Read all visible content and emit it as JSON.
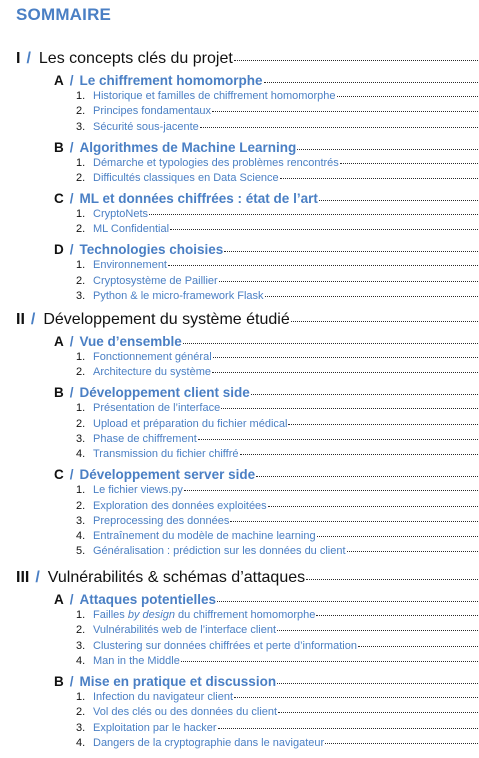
{
  "title": "SOMMAIRE",
  "sections": [
    {
      "num": "I",
      "slash": "/",
      "label": "Les concepts clés du projet",
      "subsections": [
        {
          "letter": "A",
          "slash": "/",
          "label": "Le chiffrement homomorphe",
          "items": [
            {
              "num": "1.",
              "label": "Historique et familles de chiffrement homomorphe"
            },
            {
              "num": "2.",
              "label": "Principes fondamentaux"
            },
            {
              "num": "3.",
              "label": "Sécurité sous-jacente"
            }
          ]
        },
        {
          "letter": "B",
          "slash": "/",
          "label": "Algorithmes de Machine Learning",
          "items": [
            {
              "num": "1.",
              "label": "Démarche et typologies des problèmes rencontrés"
            },
            {
              "num": "2.",
              "label": "Difficultés classiques en Data Science"
            }
          ]
        },
        {
          "letter": "C",
          "slash": "/",
          "label": "ML et données chiffrées : état de l’art",
          "items": [
            {
              "num": "1.",
              "label": "CryptoNets"
            },
            {
              "num": "2.",
              "label": "ML Confidential"
            }
          ]
        },
        {
          "letter": "D",
          "slash": "/",
          "label": "Technologies choisies",
          "items": [
            {
              "num": "1.",
              "label": "Environnement"
            },
            {
              "num": "2.",
              "label": "Cryptosystème de Paillier"
            },
            {
              "num": "3.",
              "label": "Python & le micro-framework Flask"
            }
          ]
        }
      ]
    },
    {
      "num": "II",
      "slash": "/",
      "label": "Développement du système étudié",
      "subsections": [
        {
          "letter": "A",
          "slash": "/",
          "label": "Vue d’ensemble",
          "items": [
            {
              "num": "1.",
              "label": "Fonctionnement général"
            },
            {
              "num": "2.",
              "label": "Architecture du système"
            }
          ]
        },
        {
          "letter": "B",
          "slash": "/",
          "label": "Développement client side",
          "items": [
            {
              "num": "1.",
              "label": "Présentation de l’interface"
            },
            {
              "num": "2.",
              "label": "Upload et préparation du fichier médical"
            },
            {
              "num": "3.",
              "label": "Phase de chiffrement"
            },
            {
              "num": "4.",
              "label": "Transmission du fichier chiffré"
            }
          ]
        },
        {
          "letter": "C",
          "slash": "/",
          "label": "Développement server side",
          "items": [
            {
              "num": "1.",
              "label": "Le fichier views.py"
            },
            {
              "num": "2.",
              "label": "Exploration des données exploitées"
            },
            {
              "num": "3.",
              "label": "Preprocessing des données"
            },
            {
              "num": "4.",
              "label": "Entraînement du modèle de machine learning"
            },
            {
              "num": "5.",
              "label": "Généralisation : prédiction sur les données du client"
            }
          ]
        }
      ]
    },
    {
      "num": "III",
      "slash": "/",
      "label": "Vulnérabilités & schémas d’attaques",
      "subsections": [
        {
          "letter": "A",
          "slash": "/",
          "label": "Attaques potentielles",
          "items": [
            {
              "num": "1.",
              "pre": "Failles ",
              "em": "by design",
              "post": " du chiffrement homomorphe"
            },
            {
              "num": "2.",
              "label": "Vulnérabilités web de l’interface client"
            },
            {
              "num": "3.",
              "label": "Clustering sur données chiffrées et perte d’information"
            },
            {
              "num": "4.",
              "label": "Man in the Middle"
            }
          ]
        },
        {
          "letter": "B",
          "slash": "/",
          "label": "Mise en pratique et discussion",
          "items": [
            {
              "num": "1.",
              "label": "Infection du navigateur client"
            },
            {
              "num": "2.",
              "label": "Vol des clés ou des données du client"
            },
            {
              "num": "3.",
              "label": "Exploitation par le hacker"
            },
            {
              "num": "4.",
              "label": "Dangers de la cryptographie dans le navigateur"
            }
          ]
        }
      ]
    }
  ]
}
